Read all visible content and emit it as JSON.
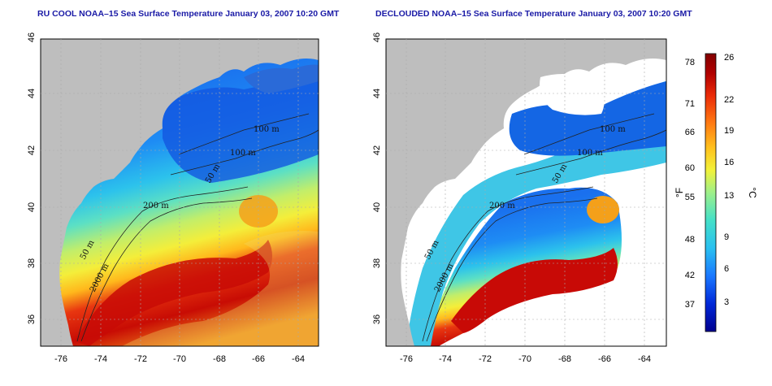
{
  "panels": [
    {
      "title": "RU COOL NOAA–15 Sea Surface Temperature January 03, 2007 10:20 GMT",
      "lat_ticks": [
        "46",
        "44",
        "42",
        "40",
        "38",
        "36"
      ],
      "lon_ticks": [
        "-76",
        "-74",
        "-72",
        "-70",
        "-68",
        "-66",
        "-64"
      ],
      "contour_labels": [
        "100 m",
        "100 m",
        "50 m",
        "200 m",
        "50 m",
        "2000 m"
      ],
      "clouds_removed": false
    },
    {
      "title": "DECLOUDED NOAA–15 Sea Surface Temperature January 03, 2007 10:20 GMT",
      "lat_ticks": [
        "46",
        "44",
        "42",
        "40",
        "38",
        "36"
      ],
      "lon_ticks": [
        "-76",
        "-74",
        "-72",
        "-70",
        "-68",
        "-66",
        "-64"
      ],
      "contour_labels": [
        "100 m",
        "100 m",
        "50 m",
        "200 m",
        "50 m",
        "2000 m"
      ],
      "clouds_removed": true
    }
  ],
  "colorbar": {
    "fahrenheit_ticks": [
      "78",
      "71",
      "66",
      "60",
      "55",
      "48",
      "42",
      "37"
    ],
    "celsius_ticks": [
      "26",
      "22",
      "19",
      "16",
      "13",
      "9",
      "6",
      "3"
    ],
    "fahrenheit_unit": "°F",
    "celsius_unit": "°C",
    "colors": [
      "#00008f",
      "#0028d8",
      "#1a78ff",
      "#2ac0f0",
      "#44e0c8",
      "#9ef08a",
      "#f2f23a",
      "#ffc21e",
      "#ff7a12",
      "#ea2a08",
      "#b00000",
      "#820000"
    ]
  },
  "colors": {
    "land": "#bebebe",
    "cloud": "#ffffff",
    "title": "#1a1aa6"
  }
}
